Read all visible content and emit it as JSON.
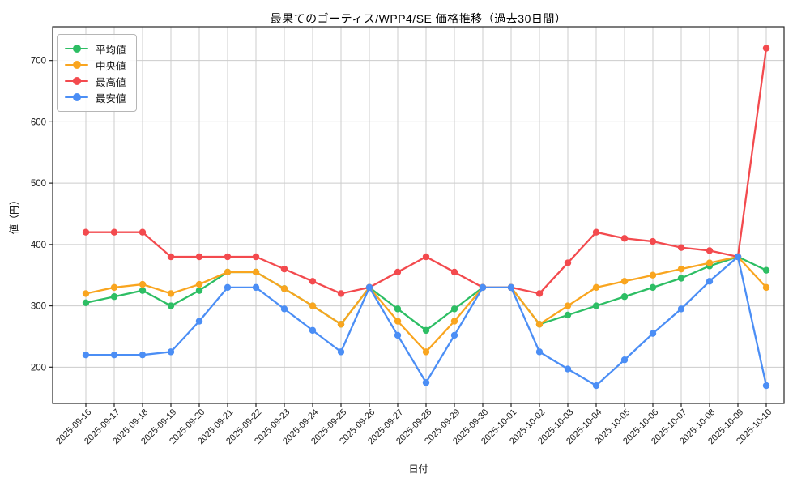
{
  "chart_data": {
    "type": "line",
    "title": "最果てのゴーティス/WPP4/SE 価格推移（過去30日間）",
    "xlabel": "日付",
    "ylabel": "値（円）",
    "x": [
      "2025-09-16",
      "2025-09-17",
      "2025-09-18",
      "2025-09-19",
      "2025-09-20",
      "2025-09-21",
      "2025-09-22",
      "2025-09-23",
      "2025-09-24",
      "2025-09-25",
      "2025-09-26",
      "2025-09-27",
      "2025-09-28",
      "2025-09-29",
      "2025-09-30",
      "2025-10-01",
      "2025-10-02",
      "2025-10-03",
      "2025-10-04",
      "2025-10-05",
      "2025-10-06",
      "2025-10-07",
      "2025-10-08",
      "2025-10-09",
      "2025-10-10"
    ],
    "series": [
      {
        "key": "average",
        "name": "平均値",
        "color": "#2dbe64",
        "values": [
          305,
          315,
          325,
          300,
          325,
          355,
          355,
          328,
          300,
          270,
          330,
          295,
          260,
          295,
          330,
          330,
          270,
          285,
          300,
          315,
          330,
          345,
          365,
          380,
          358
        ]
      },
      {
        "key": "median",
        "name": "中央値",
        "color": "#f9a51f",
        "values": [
          320,
          330,
          335,
          320,
          335,
          355,
          355,
          328,
          300,
          270,
          330,
          275,
          225,
          275,
          330,
          330,
          270,
          300,
          330,
          340,
          350,
          360,
          370,
          380,
          330
        ]
      },
      {
        "key": "max",
        "name": "最高値",
        "color": "#f34a4e",
        "values": [
          420,
          420,
          420,
          380,
          380,
          380,
          380,
          360,
          340,
          320,
          330,
          355,
          380,
          355,
          330,
          330,
          320,
          370,
          420,
          410,
          405,
          395,
          390,
          380,
          720
        ]
      },
      {
        "key": "min",
        "name": "最安値",
        "color": "#4b8ef5",
        "values": [
          220,
          220,
          220,
          225,
          275,
          330,
          330,
          295,
          260,
          225,
          330,
          252,
          175,
          252,
          330,
          330,
          225,
          197,
          170,
          212,
          255,
          295,
          340,
          380,
          170
        ]
      }
    ],
    "yticks": [
      200,
      300,
      400,
      500,
      600,
      700
    ],
    "ylim": [
      141,
      755
    ],
    "grid": true,
    "grid_color": "#cccccc",
    "legend_position": "upper left",
    "x_tick_rotation_deg": 45
  }
}
